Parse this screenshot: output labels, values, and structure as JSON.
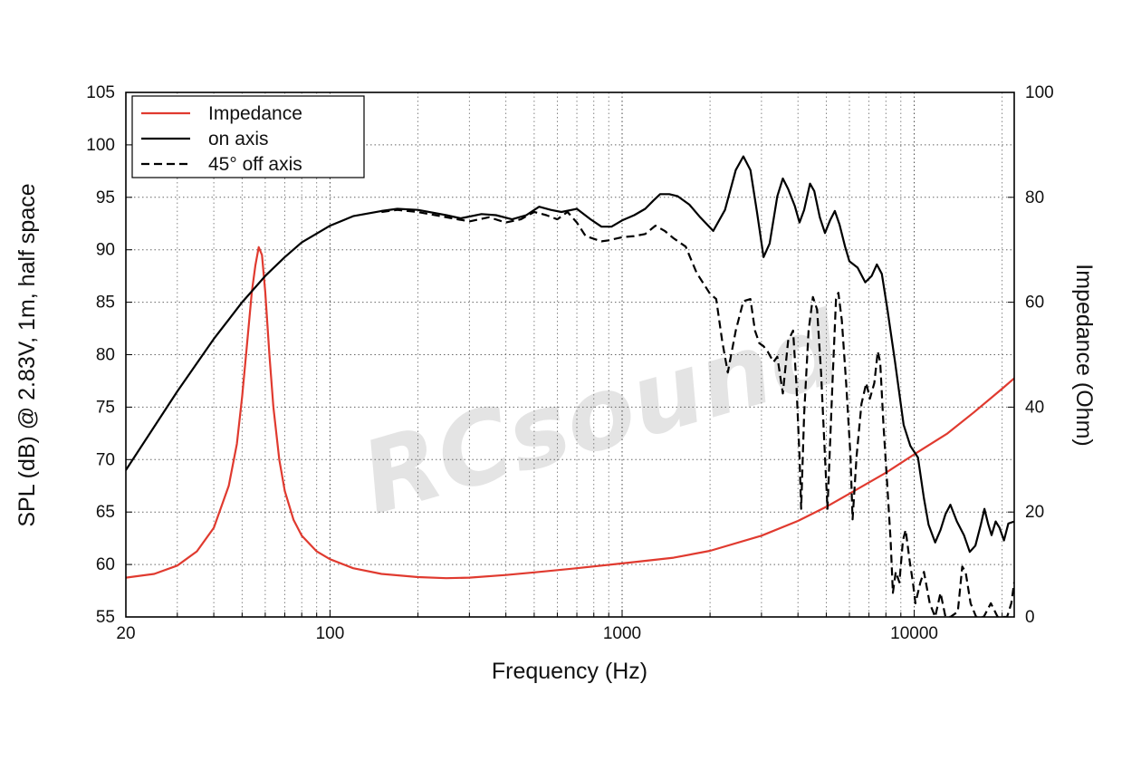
{
  "chart_data": {
    "type": "line",
    "title": "",
    "xlabel": "Frequency (Hz)",
    "ylabel": "SPL (dB) @ 2.83V, 1m, half space",
    "y2label": "Impedance (Ohm)",
    "x_scale": "log",
    "xlim": [
      20,
      22000
    ],
    "ylim": [
      55,
      105
    ],
    "y2lim": [
      0,
      100
    ],
    "x_ticks": [
      20,
      100,
      1000,
      10000
    ],
    "x_tick_labels": [
      "20",
      "100",
      "1000",
      "10000"
    ],
    "y_ticks": [
      55,
      60,
      65,
      70,
      75,
      80,
      85,
      90,
      95,
      100,
      105
    ],
    "y_tick_labels": [
      "55",
      "60",
      "65",
      "70",
      "75",
      "80",
      "85",
      "90",
      "95",
      "100",
      "105"
    ],
    "y2_ticks": [
      0,
      20,
      40,
      60,
      80,
      100
    ],
    "y2_tick_labels": [
      "0",
      "20",
      "40",
      "60",
      "80",
      "100"
    ],
    "grid": true,
    "legend_position": "top-left",
    "watermark": "RCsound",
    "series": [
      {
        "name": "Impedance",
        "axis": "right",
        "color": "#e03a2f",
        "style": "solid",
        "points": [
          [
            20,
            7.5
          ],
          [
            25,
            8.2
          ],
          [
            30,
            9.8
          ],
          [
            35,
            12.5
          ],
          [
            40,
            17
          ],
          [
            45,
            25
          ],
          [
            48,
            33
          ],
          [
            50,
            42
          ],
          [
            52,
            52
          ],
          [
            54,
            62
          ],
          [
            55.5,
            67
          ],
          [
            57,
            70.5
          ],
          [
            58.5,
            69
          ],
          [
            60,
            62
          ],
          [
            62,
            50
          ],
          [
            64,
            40
          ],
          [
            67,
            30
          ],
          [
            70,
            24
          ],
          [
            75,
            18.5
          ],
          [
            80,
            15.5
          ],
          [
            90,
            12.5
          ],
          [
            100,
            11
          ],
          [
            120,
            9.3
          ],
          [
            150,
            8.2
          ],
          [
            200,
            7.6
          ],
          [
            250,
            7.4
          ],
          [
            300,
            7.5
          ],
          [
            400,
            8
          ],
          [
            500,
            8.5
          ],
          [
            700,
            9.3
          ],
          [
            1000,
            10.2
          ],
          [
            1500,
            11.3
          ],
          [
            2000,
            12.6
          ],
          [
            3000,
            15.5
          ],
          [
            4000,
            18.3
          ],
          [
            5000,
            21
          ],
          [
            6000,
            23.5
          ],
          [
            8000,
            27.5
          ],
          [
            10000,
            31
          ],
          [
            13000,
            35
          ],
          [
            16000,
            39
          ],
          [
            20000,
            43.5
          ],
          [
            22000,
            45.5
          ]
        ]
      },
      {
        "name": "on axis",
        "axis": "left",
        "color": "#000000",
        "style": "solid",
        "points": [
          [
            20,
            69
          ],
          [
            30,
            76.5
          ],
          [
            40,
            81.5
          ],
          [
            50,
            85
          ],
          [
            60,
            87.5
          ],
          [
            70,
            89.3
          ],
          [
            80,
            90.7
          ],
          [
            100,
            92.3
          ],
          [
            120,
            93.2
          ],
          [
            150,
            93.7
          ],
          [
            170,
            93.9
          ],
          [
            200,
            93.8
          ],
          [
            250,
            93.3
          ],
          [
            280,
            93
          ],
          [
            330,
            93.4
          ],
          [
            370,
            93.3
          ],
          [
            420,
            92.9
          ],
          [
            470,
            93.3
          ],
          [
            520,
            94.1
          ],
          [
            570,
            93.8
          ],
          [
            620,
            93.6
          ],
          [
            700,
            93.9
          ],
          [
            780,
            92.9
          ],
          [
            850,
            92.2
          ],
          [
            920,
            92.2
          ],
          [
            1000,
            92.8
          ],
          [
            1100,
            93.3
          ],
          [
            1200,
            93.9
          ],
          [
            1280,
            94.7
          ],
          [
            1350,
            95.3
          ],
          [
            1450,
            95.3
          ],
          [
            1550,
            95.1
          ],
          [
            1700,
            94.3
          ],
          [
            1850,
            93.1
          ],
          [
            2050,
            91.8
          ],
          [
            2250,
            93.8
          ],
          [
            2450,
            97.6
          ],
          [
            2600,
            98.9
          ],
          [
            2750,
            97.6
          ],
          [
            2900,
            93.5
          ],
          [
            3050,
            89.3
          ],
          [
            3200,
            90.6
          ],
          [
            3400,
            95.1
          ],
          [
            3550,
            96.8
          ],
          [
            3700,
            95.8
          ],
          [
            3900,
            94.2
          ],
          [
            4050,
            92.6
          ],
          [
            4200,
            93.8
          ],
          [
            4400,
            96.3
          ],
          [
            4550,
            95.6
          ],
          [
            4750,
            93.1
          ],
          [
            4950,
            91.6
          ],
          [
            5150,
            92.8
          ],
          [
            5350,
            93.7
          ],
          [
            5550,
            92.4
          ],
          [
            5800,
            90.3
          ],
          [
            6000,
            88.9
          ],
          [
            6400,
            88.3
          ],
          [
            6800,
            86.9
          ],
          [
            7150,
            87.5
          ],
          [
            7450,
            88.6
          ],
          [
            7750,
            87.7
          ],
          [
            8100,
            84.3
          ],
          [
            8600,
            79.3
          ],
          [
            9200,
            73.3
          ],
          [
            9700,
            71.3
          ],
          [
            10300,
            70.2
          ],
          [
            10800,
            66.3
          ],
          [
            11200,
            63.8
          ],
          [
            11800,
            62.1
          ],
          [
            12300,
            63.3
          ],
          [
            12800,
            64.8
          ],
          [
            13300,
            65.7
          ],
          [
            14000,
            64.1
          ],
          [
            14800,
            62.8
          ],
          [
            15500,
            61.2
          ],
          [
            16200,
            61.8
          ],
          [
            16900,
            63.8
          ],
          [
            17400,
            65.3
          ],
          [
            17900,
            63.9
          ],
          [
            18400,
            62.8
          ],
          [
            19000,
            64.1
          ],
          [
            19600,
            63.5
          ],
          [
            20300,
            62.3
          ],
          [
            21000,
            63.9
          ],
          [
            22000,
            64.1
          ]
        ]
      },
      {
        "name": "45° off axis",
        "axis": "left",
        "color": "#000000",
        "style": "dashed",
        "points": [
          [
            150,
            93.6
          ],
          [
            170,
            93.8
          ],
          [
            200,
            93.6
          ],
          [
            250,
            93.1
          ],
          [
            300,
            92.7
          ],
          [
            350,
            93.1
          ],
          [
            400,
            92.6
          ],
          [
            450,
            92.9
          ],
          [
            500,
            93.6
          ],
          [
            550,
            93.3
          ],
          [
            600,
            92.9
          ],
          [
            650,
            93.6
          ],
          [
            700,
            92.6
          ],
          [
            750,
            91.3
          ],
          [
            850,
            90.8
          ],
          [
            900,
            90.9
          ],
          [
            1000,
            91.2
          ],
          [
            1100,
            91.3
          ],
          [
            1200,
            91.5
          ],
          [
            1300,
            92.3
          ],
          [
            1400,
            91.8
          ],
          [
            1500,
            91.1
          ],
          [
            1650,
            90.3
          ],
          [
            1800,
            87.8
          ],
          [
            2000,
            85.8
          ],
          [
            2100,
            85.3
          ],
          [
            2200,
            81.3
          ],
          [
            2300,
            78.3
          ],
          [
            2450,
            82.3
          ],
          [
            2600,
            85.1
          ],
          [
            2750,
            85.3
          ],
          [
            2850,
            82.3
          ],
          [
            2950,
            81.1
          ],
          [
            3050,
            80.8
          ],
          [
            3150,
            80.3
          ],
          [
            3300,
            79.3
          ],
          [
            3400,
            79.8
          ],
          [
            3550,
            76.3
          ],
          [
            3700,
            81.3
          ],
          [
            3850,
            82.3
          ],
          [
            3950,
            77.3
          ],
          [
            4050,
            70.3
          ],
          [
            4100,
            65.3
          ],
          [
            4200,
            74.3
          ],
          [
            4350,
            82.3
          ],
          [
            4500,
            85.5
          ],
          [
            4650,
            84.3
          ],
          [
            4800,
            78.3
          ],
          [
            4950,
            70.3
          ],
          [
            5050,
            65.3
          ],
          [
            5250,
            77.3
          ],
          [
            5400,
            85.3
          ],
          [
            5500,
            85.9
          ],
          [
            5650,
            83.3
          ],
          [
            5850,
            77.3
          ],
          [
            6050,
            70.3
          ],
          [
            6150,
            64.3
          ],
          [
            6350,
            70.3
          ],
          [
            6600,
            75.3
          ],
          [
            6850,
            77.3
          ],
          [
            7050,
            75.8
          ],
          [
            7300,
            77.3
          ],
          [
            7500,
            80.3
          ],
          [
            7650,
            79.3
          ],
          [
            7850,
            73.3
          ],
          [
            8100,
            67.3
          ],
          [
            8300,
            62.3
          ],
          [
            8450,
            57.3
          ],
          [
            8650,
            59.3
          ],
          [
            8900,
            58.3
          ],
          [
            9150,
            62.3
          ],
          [
            9350,
            63.3
          ],
          [
            9650,
            60.3
          ],
          [
            9900,
            58.3
          ],
          [
            10100,
            56.3
          ],
          [
            10500,
            58.3
          ],
          [
            10800,
            59.3
          ],
          [
            11300,
            56.3
          ],
          [
            11800,
            55
          ],
          [
            12300,
            57.3
          ],
          [
            12800,
            55
          ],
          [
            13300,
            55
          ],
          [
            14100,
            55.5
          ],
          [
            14600,
            59.8
          ],
          [
            15000,
            59.3
          ],
          [
            15600,
            56.3
          ],
          [
            16300,
            55
          ],
          [
            17300,
            55
          ],
          [
            18300,
            56.3
          ],
          [
            19300,
            55
          ],
          [
            20800,
            55
          ],
          [
            21500,
            56.3
          ],
          [
            22000,
            58.3
          ]
        ]
      }
    ]
  }
}
